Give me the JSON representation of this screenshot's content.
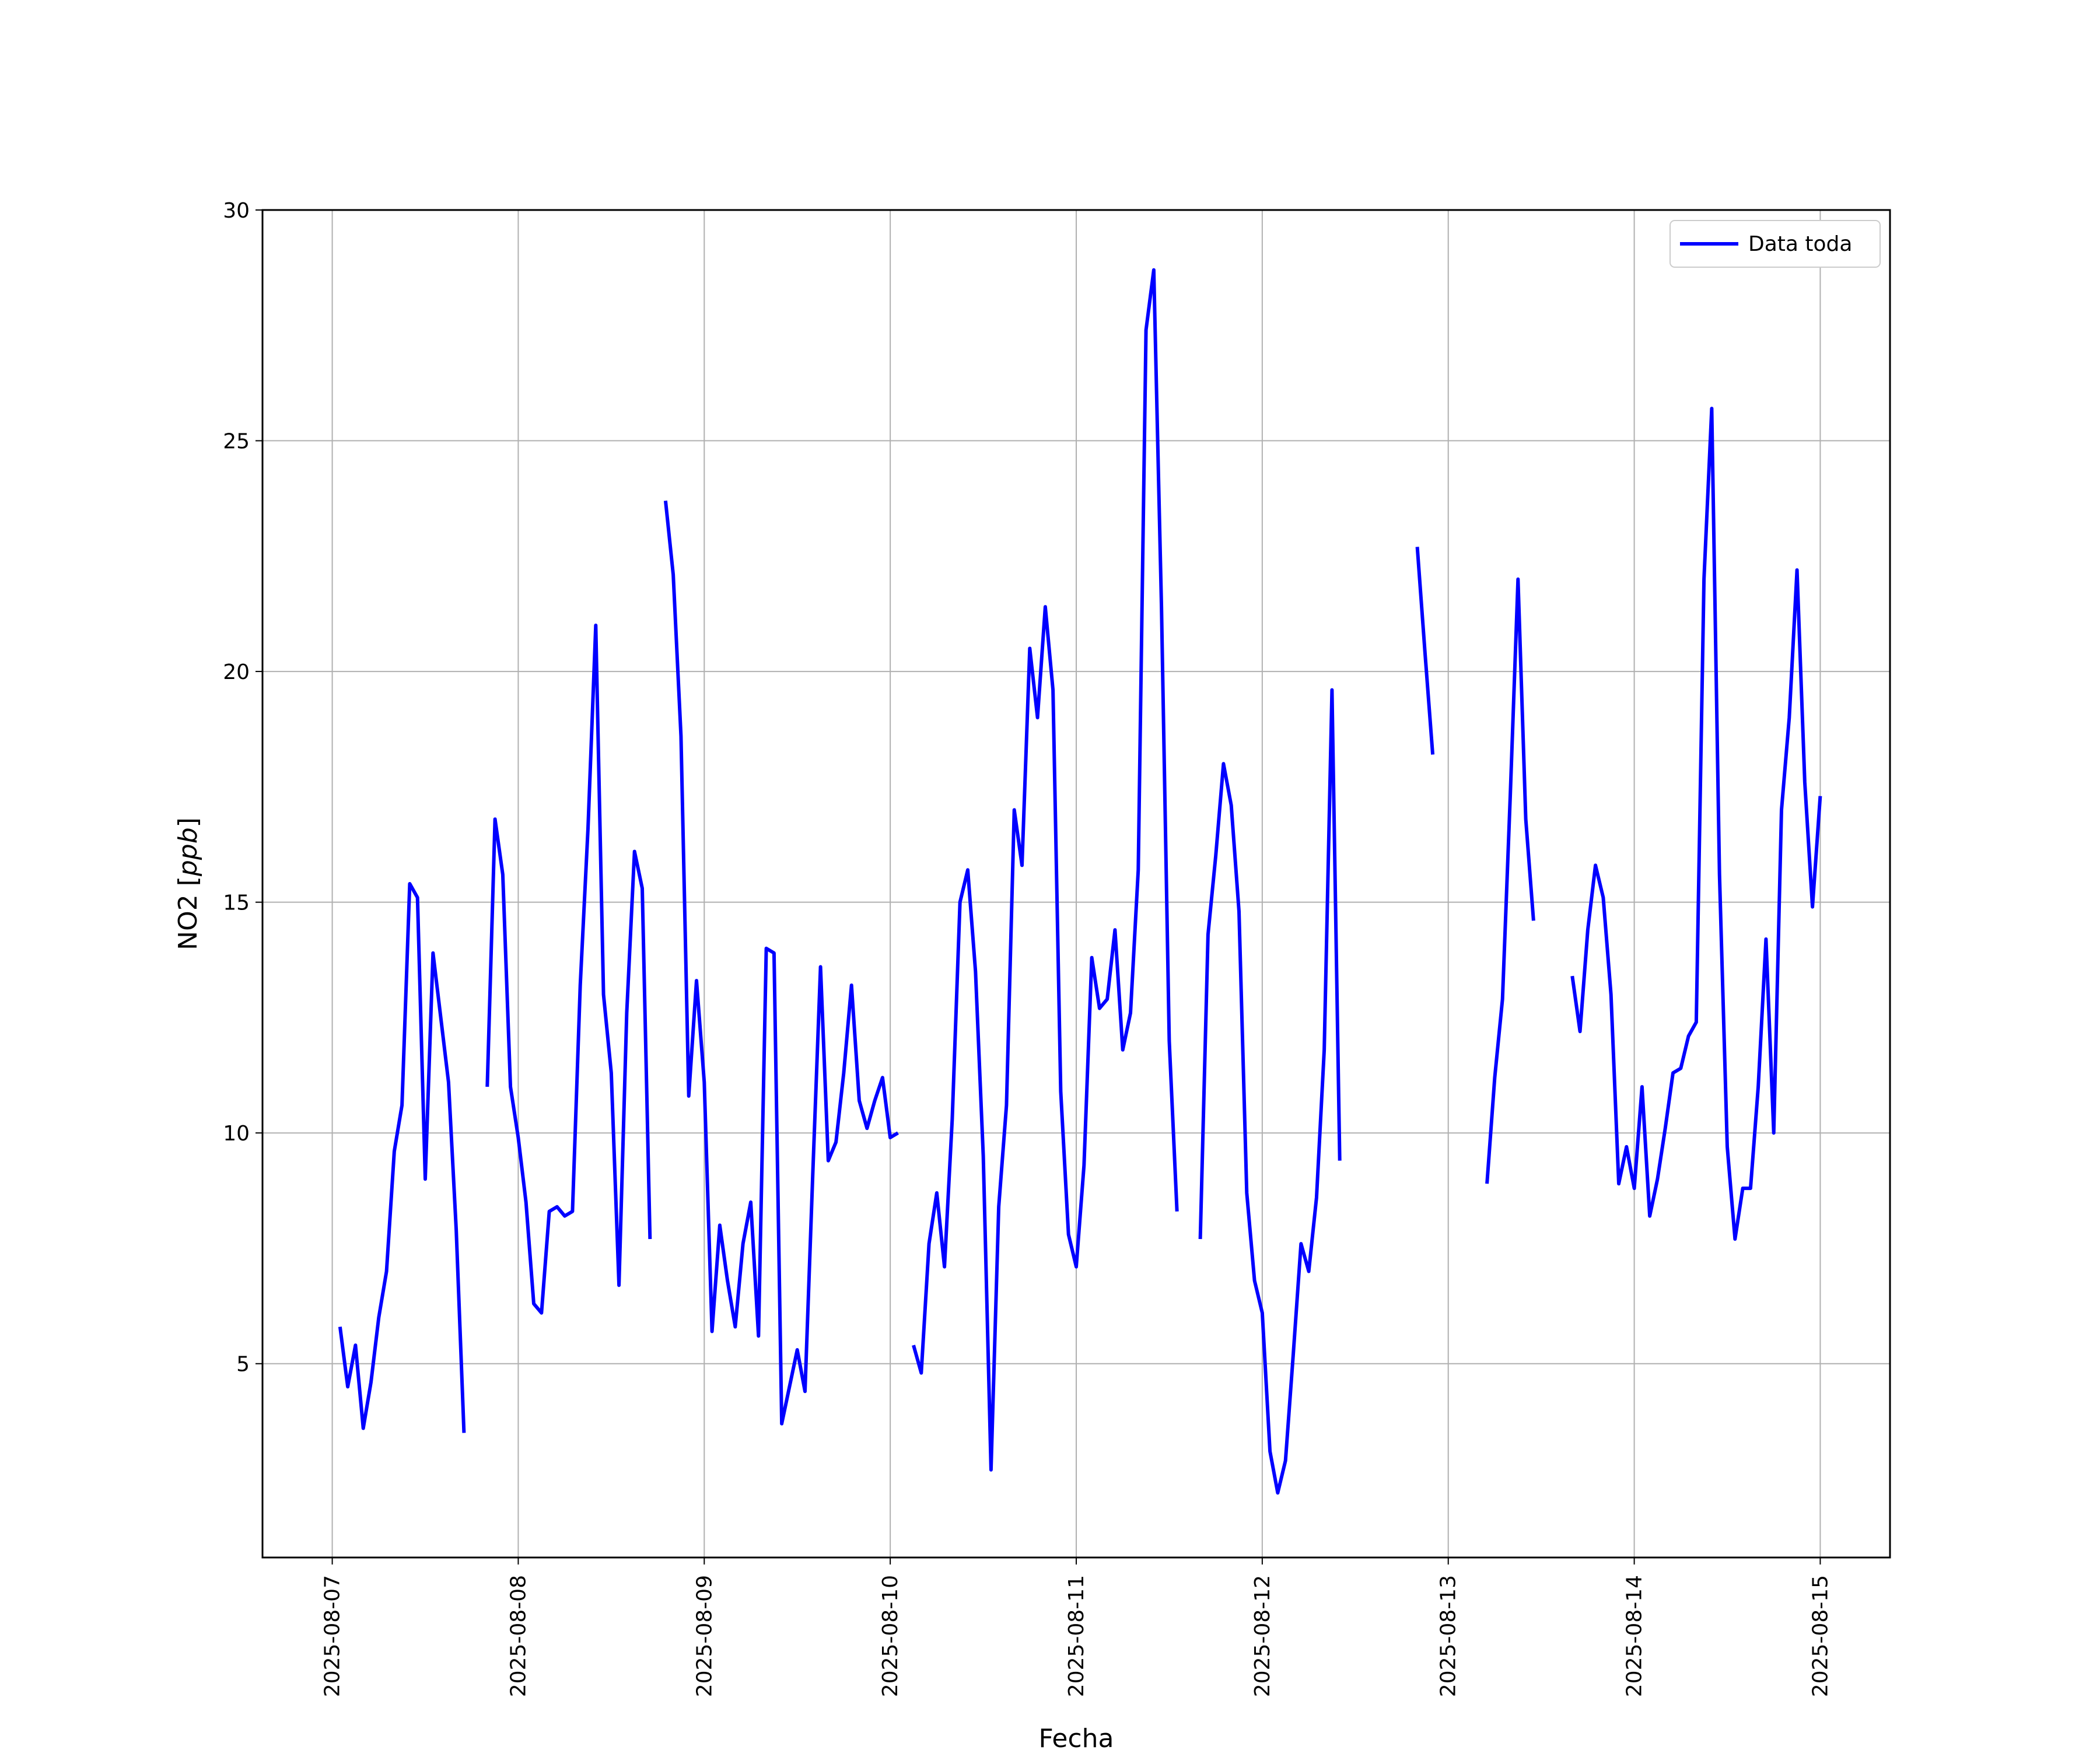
{
  "chart_data": {
    "type": "line",
    "xlabel": "Fecha",
    "ylabel_main": "NO2 [",
    "ylabel_unit": "ppb",
    "ylabel_end": "]",
    "legend_position": "top-right",
    "grid": true,
    "xlim": [
      "2025-08-06 15:00",
      "2025-08-15 09:00"
    ],
    "ylim": [
      0.8,
      30
    ],
    "x_ticks": [
      "2025-08-07",
      "2025-08-08",
      "2025-08-09",
      "2025-08-10",
      "2025-08-11",
      "2025-08-12",
      "2025-08-13",
      "2025-08-14",
      "2025-08-15"
    ],
    "y_ticks": [
      5,
      10,
      15,
      20,
      25,
      30
    ],
    "series": [
      {
        "name": "Data toda",
        "color": "#0000ff",
        "segments": [
          [
            [
              "2025-08-07 01:00",
              5.8
            ],
            [
              "2025-08-07 02:00",
              4.5
            ],
            [
              "2025-08-07 03:00",
              5.4
            ],
            [
              "2025-08-07 04:00",
              3.6
            ],
            [
              "2025-08-07 05:00",
              4.6
            ],
            [
              "2025-08-07 06:00",
              6.0
            ],
            [
              "2025-08-07 07:00",
              7.0
            ],
            [
              "2025-08-07 08:00",
              9.6
            ],
            [
              "2025-08-07 09:00",
              10.6
            ],
            [
              "2025-08-07 10:00",
              15.4
            ],
            [
              "2025-08-07 11:00",
              15.1
            ],
            [
              "2025-08-07 12:00",
              9.0
            ],
            [
              "2025-08-07 13:00",
              13.9
            ],
            [
              "2025-08-07 14:00",
              12.5
            ],
            [
              "2025-08-07 15:00",
              11.1
            ],
            [
              "2025-08-07 16:00",
              7.9
            ],
            [
              "2025-08-07 17:00",
              3.5
            ]
          ],
          [
            [
              "2025-08-07 20:00",
              11.0
            ],
            [
              "2025-08-07 21:00",
              16.8
            ],
            [
              "2025-08-07 22:00",
              15.6
            ],
            [
              "2025-08-07 23:00",
              11.0
            ],
            [
              "2025-08-08 00:00",
              9.9
            ],
            [
              "2025-08-08 01:00",
              8.5
            ],
            [
              "2025-08-08 02:00",
              6.3
            ],
            [
              "2025-08-08 03:00",
              6.1
            ],
            [
              "2025-08-08 04:00",
              8.3
            ],
            [
              "2025-08-08 05:00",
              8.4
            ],
            [
              "2025-08-08 06:00",
              8.2
            ],
            [
              "2025-08-08 07:00",
              8.3
            ],
            [
              "2025-08-08 08:00",
              13.2
            ],
            [
              "2025-08-08 09:00",
              16.6
            ],
            [
              "2025-08-08 10:00",
              21.0
            ],
            [
              "2025-08-08 11:00",
              13.0
            ],
            [
              "2025-08-08 12:00",
              11.3
            ],
            [
              "2025-08-08 13:00",
              6.7
            ],
            [
              "2025-08-08 14:00",
              12.6
            ],
            [
              "2025-08-08 15:00",
              16.1
            ],
            [
              "2025-08-08 16:00",
              15.3
            ],
            [
              "2025-08-08 17:00",
              7.7
            ]
          ],
          [
            [
              "2025-08-08 19:00",
              23.7
            ],
            [
              "2025-08-08 20:00",
              22.1
            ],
            [
              "2025-08-08 21:00",
              18.6
            ],
            [
              "2025-08-08 22:00",
              10.8
            ],
            [
              "2025-08-08 23:00",
              13.3
            ],
            [
              "2025-08-09 00:00",
              11.1
            ],
            [
              "2025-08-09 01:00",
              5.7
            ],
            [
              "2025-08-09 02:00",
              8.0
            ],
            [
              "2025-08-09 03:00",
              6.8
            ],
            [
              "2025-08-09 04:00",
              5.8
            ],
            [
              "2025-08-09 05:00",
              7.6
            ],
            [
              "2025-08-09 06:00",
              8.5
            ],
            [
              "2025-08-09 07:00",
              5.6
            ],
            [
              "2025-08-09 08:00",
              14.0
            ],
            [
              "2025-08-09 09:00",
              13.9
            ],
            [
              "2025-08-09 10:00",
              3.7
            ],
            [
              "2025-08-09 11:00",
              4.5
            ],
            [
              "2025-08-09 12:00",
              5.3
            ],
            [
              "2025-08-09 13:00",
              4.4
            ],
            [
              "2025-08-09 14:00",
              9.1
            ],
            [
              "2025-08-09 15:00",
              13.6
            ],
            [
              "2025-08-09 16:00",
              9.4
            ],
            [
              "2025-08-09 17:00",
              9.8
            ],
            [
              "2025-08-09 18:00",
              11.3
            ],
            [
              "2025-08-09 19:00",
              13.2
            ],
            [
              "2025-08-09 20:00",
              10.7
            ],
            [
              "2025-08-09 21:00",
              10.1
            ],
            [
              "2025-08-09 22:00",
              10.7
            ],
            [
              "2025-08-09 23:00",
              11.2
            ],
            [
              "2025-08-10 00:00",
              9.9
            ],
            [
              "2025-08-10 01:00",
              10.0
            ]
          ],
          [
            [
              "2025-08-10 03:00",
              5.4
            ],
            [
              "2025-08-10 04:00",
              4.8
            ],
            [
              "2025-08-10 05:00",
              7.6
            ],
            [
              "2025-08-10 06:00",
              8.7
            ],
            [
              "2025-08-10 07:00",
              7.1
            ],
            [
              "2025-08-10 08:00",
              10.3
            ],
            [
              "2025-08-10 09:00",
              15.0
            ],
            [
              "2025-08-10 10:00",
              15.7
            ],
            [
              "2025-08-10 11:00",
              13.5
            ],
            [
              "2025-08-10 12:00",
              9.5
            ],
            [
              "2025-08-10 13:00",
              2.7
            ],
            [
              "2025-08-10 14:00",
              8.4
            ],
            [
              "2025-08-10 15:00",
              10.6
            ],
            [
              "2025-08-10 16:00",
              17.0
            ],
            [
              "2025-08-10 17:00",
              15.8
            ],
            [
              "2025-08-10 18:00",
              20.5
            ],
            [
              "2025-08-10 19:00",
              19.0
            ],
            [
              "2025-08-10 20:00",
              21.4
            ],
            [
              "2025-08-10 21:00",
              19.6
            ],
            [
              "2025-08-10 22:00",
              10.9
            ],
            [
              "2025-08-10 23:00",
              7.8
            ],
            [
              "2025-08-11 00:00",
              7.1
            ],
            [
              "2025-08-11 01:00",
              9.3
            ],
            [
              "2025-08-11 02:00",
              13.8
            ],
            [
              "2025-08-11 03:00",
              12.7
            ],
            [
              "2025-08-11 04:00",
              12.9
            ],
            [
              "2025-08-11 05:00",
              14.4
            ],
            [
              "2025-08-11 06:00",
              11.8
            ],
            [
              "2025-08-11 07:00",
              12.6
            ],
            [
              "2025-08-11 08:00",
              15.7
            ],
            [
              "2025-08-11 09:00",
              27.4
            ],
            [
              "2025-08-11 10:00",
              28.7
            ],
            [
              "2025-08-11 11:00",
              21.4
            ],
            [
              "2025-08-11 12:00",
              12.0
            ],
            [
              "2025-08-11 13:00",
              8.3
            ]
          ],
          [
            [
              "2025-08-11 16:00",
              7.7
            ],
            [
              "2025-08-11 17:00",
              14.3
            ],
            [
              "2025-08-11 18:00",
              16.0
            ],
            [
              "2025-08-11 19:00",
              18.0
            ],
            [
              "2025-08-11 20:00",
              17.1
            ],
            [
              "2025-08-11 21:00",
              14.8
            ],
            [
              "2025-08-11 22:00",
              8.7
            ],
            [
              "2025-08-11 23:00",
              6.8
            ],
            [
              "2025-08-12 00:00",
              6.1
            ],
            [
              "2025-08-12 01:00",
              3.1
            ],
            [
              "2025-08-12 02:00",
              2.2
            ],
            [
              "2025-08-12 03:00",
              2.9
            ],
            [
              "2025-08-12 04:00",
              5.2
            ],
            [
              "2025-08-12 05:00",
              7.6
            ],
            [
              "2025-08-12 06:00",
              7.0
            ],
            [
              "2025-08-12 07:00",
              8.6
            ],
            [
              "2025-08-12 08:00",
              11.8
            ],
            [
              "2025-08-12 09:00",
              19.6
            ],
            [
              "2025-08-12 10:00",
              9.4
            ]
          ],
          [
            [
              "2025-08-12 20:00",
              22.7
            ],
            [
              "2025-08-12 21:00",
              20.4
            ],
            [
              "2025-08-12 22:00",
              18.2
            ]
          ],
          [
            [
              "2025-08-13 05:00",
              8.9
            ],
            [
              "2025-08-13 06:00",
              11.2
            ],
            [
              "2025-08-13 07:00",
              12.9
            ],
            [
              "2025-08-13 08:00",
              17.3
            ],
            [
              "2025-08-13 09:00",
              22.0
            ],
            [
              "2025-08-13 10:00",
              16.8
            ],
            [
              "2025-08-13 11:00",
              14.6
            ]
          ],
          [
            [
              "2025-08-13 16:00",
              13.4
            ],
            [
              "2025-08-13 17:00",
              12.2
            ],
            [
              "2025-08-13 18:00",
              14.4
            ],
            [
              "2025-08-13 19:00",
              15.8
            ],
            [
              "2025-08-13 20:00",
              15.1
            ],
            [
              "2025-08-13 21:00",
              13.0
            ],
            [
              "2025-08-13 22:00",
              8.9
            ],
            [
              "2025-08-13 23:00",
              9.7
            ],
            [
              "2025-08-14 00:00",
              8.8
            ],
            [
              "2025-08-14 01:00",
              11.0
            ],
            [
              "2025-08-14 02:00",
              8.2
            ],
            [
              "2025-08-14 03:00",
              9.0
            ],
            [
              "2025-08-14 04:00",
              10.1
            ],
            [
              "2025-08-14 05:00",
              11.3
            ],
            [
              "2025-08-14 06:00",
              11.4
            ],
            [
              "2025-08-14 07:00",
              12.1
            ],
            [
              "2025-08-14 08:00",
              12.4
            ],
            [
              "2025-08-14 09:00",
              22.0
            ],
            [
              "2025-08-14 10:00",
              25.7
            ],
            [
              "2025-08-14 11:00",
              15.6
            ],
            [
              "2025-08-14 12:00",
              9.7
            ],
            [
              "2025-08-14 13:00",
              7.7
            ],
            [
              "2025-08-14 14:00",
              8.8
            ],
            [
              "2025-08-14 15:00",
              8.8
            ],
            [
              "2025-08-14 16:00",
              11.0
            ],
            [
              "2025-08-14 17:00",
              14.2
            ],
            [
              "2025-08-14 18:00",
              10.0
            ],
            [
              "2025-08-14 19:00",
              17.0
            ],
            [
              "2025-08-14 20:00",
              19.0
            ],
            [
              "2025-08-14 21:00",
              22.2
            ],
            [
              "2025-08-14 22:00",
              17.6
            ],
            [
              "2025-08-14 23:00",
              14.9
            ],
            [
              "2025-08-15 00:00",
              17.3
            ]
          ]
        ]
      }
    ]
  }
}
